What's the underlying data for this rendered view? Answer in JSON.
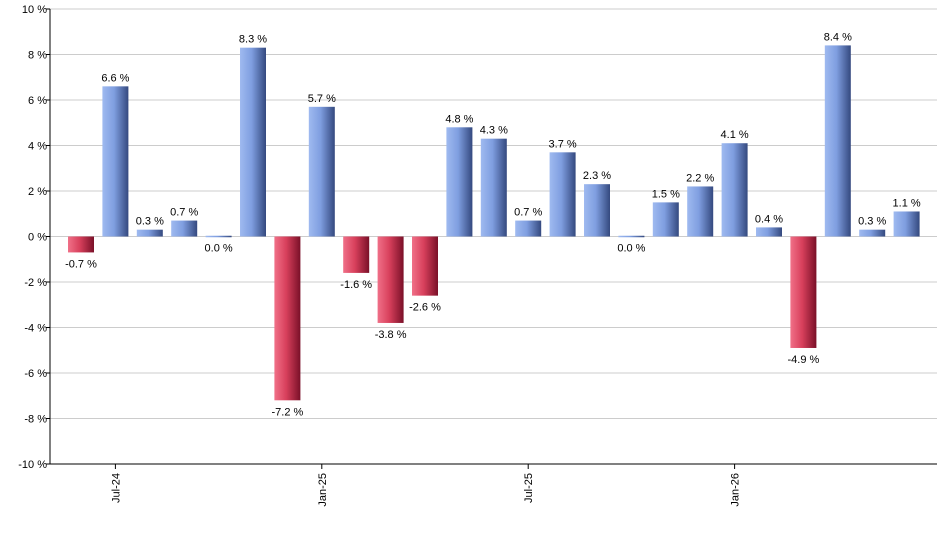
{
  "chart_data": {
    "type": "bar",
    "ylim": [
      -10,
      10
    ],
    "ytick_step": 2,
    "ytick_suffix": " %",
    "grid": true,
    "legend": "none",
    "values": [
      -0.7,
      6.6,
      0.3,
      0.7,
      0.0,
      8.3,
      -7.2,
      5.7,
      -1.6,
      -3.8,
      -2.6,
      4.8,
      4.3,
      0.7,
      3.7,
      2.3,
      0.0,
      1.5,
      2.2,
      4.1,
      0.4,
      -4.9,
      8.4,
      0.3,
      1.1
    ],
    "data_labels": [
      "-0.7 %",
      "6.6 %",
      "0.3 %",
      "0.7 %",
      "0.0 %",
      "8.3 %",
      "-7.2 %",
      "5.7 %",
      "-1.6 %",
      "-3.8 %",
      "-2.6 %",
      "4.8 %",
      "4.3 %",
      "0.7 %",
      "3.7 %",
      "2.3 %",
      "0.0 %",
      "1.5 %",
      "2.2 %",
      "4.1 %",
      "0.4 %",
      "-4.9 %",
      "8.4 %",
      "0.3 %",
      "1.1 %"
    ],
    "x_tick_labels": [
      {
        "index": 1,
        "label": "Jul-24"
      },
      {
        "index": 7,
        "label": "Jan-25"
      },
      {
        "index": 13,
        "label": "Jul-25"
      },
      {
        "index": 19,
        "label": "Jan-26"
      }
    ],
    "colors": {
      "positive": "#7f9ee0",
      "positive_dark": "#3c5594",
      "negative": "#e0506a",
      "negative_dark": "#8a1530",
      "grid": "#cccccc",
      "axis": "#000000"
    }
  }
}
